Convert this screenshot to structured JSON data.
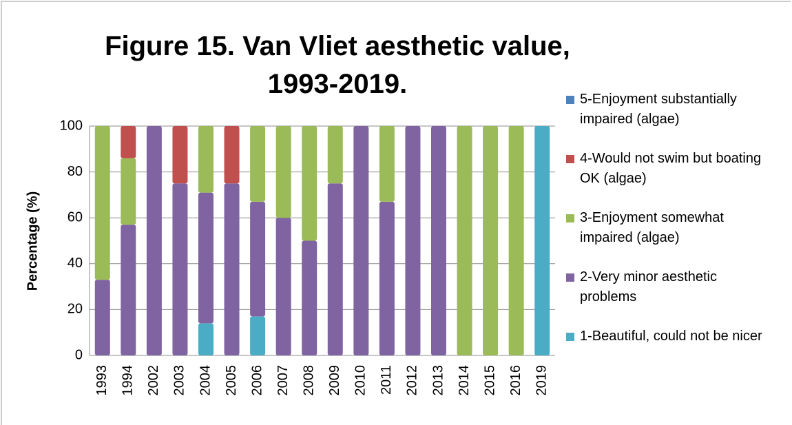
{
  "chart_data": {
    "type": "stacked_bar",
    "title": "Figure 15. Van Vliet aesthetic value, 1993-2019.",
    "y_label": "Percentage (%)",
    "categories": [
      "1993",
      "1994",
      "2002",
      "2003",
      "2004",
      "2005",
      "2006",
      "2007",
      "2008",
      "2009",
      "2010",
      "2011",
      "2012",
      "2013",
      "2014",
      "2015",
      "2016",
      "2019"
    ],
    "series": [
      {
        "name": "1-Beautiful, could not be nicer",
        "color": "#4bacc6",
        "values": [
          0,
          0,
          0,
          0,
          14,
          0,
          17,
          0,
          0,
          0,
          0,
          0,
          0,
          0,
          0,
          0,
          0,
          100
        ]
      },
      {
        "name": "2-Very minor aesthetic problems",
        "color": "#8064a2",
        "values": [
          33,
          57,
          100,
          75,
          57,
          75,
          50,
          60,
          50,
          75,
          100,
          67,
          100,
          100,
          0,
          0,
          0,
          0
        ]
      },
      {
        "name": "3-Enjoyment somewhat impaired (algae)",
        "color": "#9bbb59",
        "values": [
          67,
          29,
          0,
          0,
          29,
          0,
          33,
          40,
          50,
          25,
          0,
          33,
          0,
          0,
          100,
          100,
          100,
          0
        ]
      },
      {
        "name": "4-Would not swim but boating OK (algae)",
        "color": "#c0504d",
        "values": [
          0,
          14,
          0,
          25,
          0,
          25,
          0,
          0,
          0,
          0,
          0,
          0,
          0,
          0,
          0,
          0,
          0,
          0
        ]
      },
      {
        "name": "5-Enjoyment substantially impaired (algae)",
        "color": "#4f81bd",
        "values": [
          0,
          0,
          0,
          0,
          0,
          0,
          0,
          0,
          0,
          0,
          0,
          0,
          0,
          0,
          0,
          0,
          0,
          0
        ]
      }
    ],
    "ylim": [
      0,
      100
    ],
    "yticks": [
      0,
      20,
      40,
      60,
      80,
      100
    ],
    "grid": true,
    "legend": "right"
  }
}
